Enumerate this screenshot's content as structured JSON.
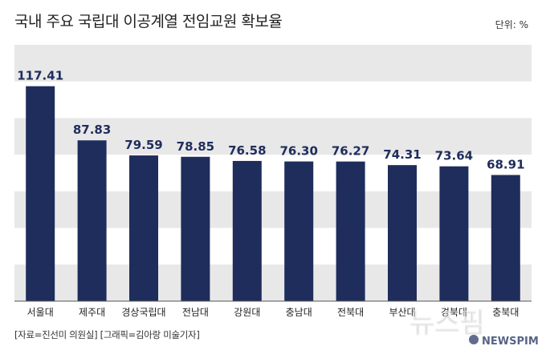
{
  "header": {
    "title": "국내 주요 국립대 이공계열 전임교원 확보율",
    "unit": "단위: %"
  },
  "footer": {
    "source": "[자료=진선미 의원실] [그래픽=김아랑 미술기자]"
  },
  "watermark": {
    "text": "뉴스핌",
    "sub": "NEWSPIM"
  },
  "colors": {
    "bar": "#1f2d5c",
    "band": "#e8e8e8",
    "label": "#1f2d5c",
    "axis": "#555555"
  },
  "chart_data": {
    "type": "bar",
    "categories": [
      "서울대",
      "제주대",
      "경상국립대",
      "전남대",
      "강원대",
      "충남대",
      "전북대",
      "부산대",
      "경북대",
      "충북대"
    ],
    "values": [
      117.41,
      87.83,
      79.59,
      78.85,
      76.58,
      76.3,
      76.27,
      74.31,
      73.64,
      68.91
    ],
    "value_labels": [
      "117.41",
      "87.83",
      "79.59",
      "78.85",
      "76.58",
      "76.30",
      "76.27",
      "74.31",
      "73.64",
      "68.91"
    ],
    "title": "국내 주요 국립대 이공계열 전임교원 확보율",
    "ylabel": "",
    "ylim": [
      0,
      140
    ],
    "grid": "alternating bands"
  }
}
